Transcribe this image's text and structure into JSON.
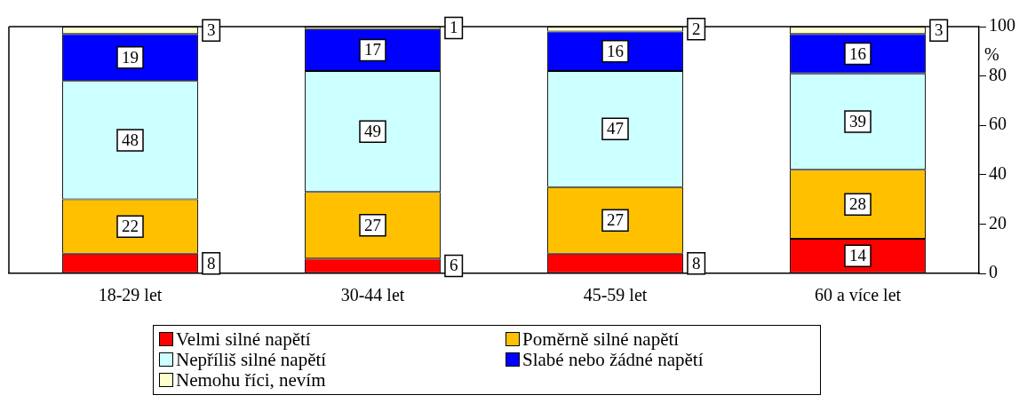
{
  "chart_data": {
    "type": "bar",
    "stacked": true,
    "categories": [
      "18-29 let",
      "30-44 let",
      "45-59 let",
      "60 a více let"
    ],
    "series": [
      {
        "name": "Velmi silné napětí",
        "color": "#ff0000",
        "values": [
          8,
          6,
          8,
          14
        ]
      },
      {
        "name": "Poměrně silné napětí",
        "color": "#ffc000",
        "values": [
          22,
          27,
          27,
          28
        ]
      },
      {
        "name": "Nepříliš silné napětí",
        "color": "#ccffff",
        "values": [
          48,
          49,
          47,
          39
        ]
      },
      {
        "name": "Slabé nebo žádné napětí",
        "color": "#0000ff",
        "values": [
          19,
          17,
          16,
          16
        ]
      },
      {
        "name": "Nemohu říci, nevím",
        "color": "#ffffcc",
        "values": [
          3,
          1,
          2,
          3
        ]
      }
    ],
    "ylabel": "%",
    "ylim": [
      0,
      100
    ],
    "yticks": [
      0,
      20,
      40,
      60,
      80,
      100
    ],
    "grid": false,
    "legend": "bottom",
    "data_labels": true
  }
}
